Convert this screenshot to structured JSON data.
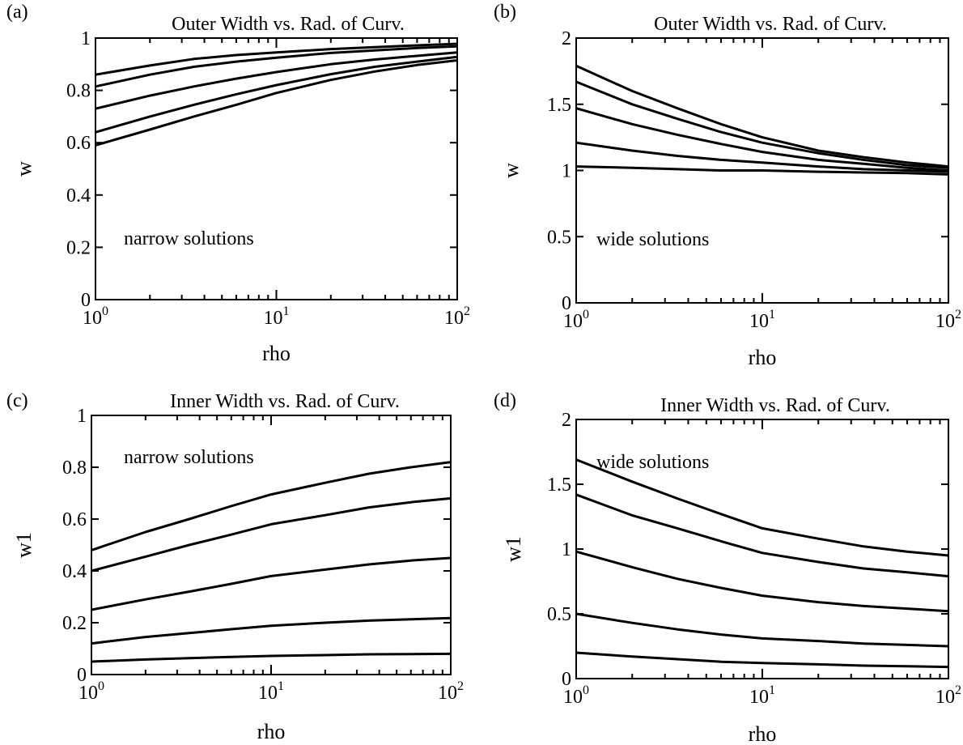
{
  "chart_data": [
    {
      "type": "line",
      "panel_label": "(a)",
      "title": "Outer Width vs. Rad. of Curv.",
      "xlabel": "rho",
      "ylabel": "w",
      "xscale": "log",
      "xlim": [
        1,
        100
      ],
      "ylim": [
        0,
        1
      ],
      "xtick_labels": [
        {
          "base": "10",
          "exp": "0"
        },
        {
          "base": "10",
          "exp": "1"
        },
        {
          "base": "10",
          "exp": "2"
        }
      ],
      "ytick_labels": [
        "0",
        "0.2",
        "0.4",
        "0.6",
        "0.8",
        "1"
      ],
      "annotation": "narrow solutions",
      "x": [
        1,
        2,
        3.5,
        6,
        10,
        20,
        35,
        60,
        100
      ],
      "series": [
        {
          "values": [
            0.86,
            0.895,
            0.92,
            0.935,
            0.945,
            0.958,
            0.965,
            0.972,
            0.978
          ]
        },
        {
          "values": [
            0.815,
            0.86,
            0.89,
            0.91,
            0.925,
            0.943,
            0.953,
            0.962,
            0.968
          ]
        },
        {
          "values": [
            0.73,
            0.78,
            0.815,
            0.845,
            0.87,
            0.9,
            0.918,
            0.932,
            0.945
          ]
        },
        {
          "values": [
            0.64,
            0.7,
            0.745,
            0.785,
            0.82,
            0.862,
            0.89,
            0.91,
            0.928
          ]
        },
        {
          "values": [
            0.59,
            0.65,
            0.7,
            0.745,
            0.79,
            0.84,
            0.872,
            0.897,
            0.915
          ]
        }
      ]
    },
    {
      "type": "line",
      "panel_label": "(b)",
      "title": "Outer Width vs. Rad. of Curv.",
      "xlabel": "rho",
      "ylabel": "w",
      "xscale": "log",
      "xlim": [
        1,
        100
      ],
      "ylim": [
        0,
        2
      ],
      "xtick_labels": [
        {
          "base": "10",
          "exp": "0"
        },
        {
          "base": "10",
          "exp": "1"
        },
        {
          "base": "10",
          "exp": "2"
        }
      ],
      "ytick_labels": [
        "0",
        "0.5",
        "1",
        "1.5",
        "2"
      ],
      "annotation": "wide solutions",
      "x": [
        1,
        2,
        3.5,
        6,
        10,
        20,
        35,
        60,
        100
      ],
      "series": [
        {
          "values": [
            1.79,
            1.6,
            1.47,
            1.35,
            1.25,
            1.15,
            1.1,
            1.06,
            1.03
          ]
        },
        {
          "values": [
            1.67,
            1.5,
            1.39,
            1.29,
            1.21,
            1.13,
            1.08,
            1.04,
            1.02
          ]
        },
        {
          "values": [
            1.47,
            1.35,
            1.27,
            1.2,
            1.14,
            1.08,
            1.05,
            1.02,
            1.0
          ]
        },
        {
          "values": [
            1.21,
            1.15,
            1.11,
            1.08,
            1.06,
            1.03,
            1.01,
            1.0,
            0.99
          ]
        },
        {
          "values": [
            1.03,
            1.02,
            1.01,
            1.0,
            1.0,
            0.99,
            0.985,
            0.98,
            0.97
          ]
        }
      ]
    },
    {
      "type": "line",
      "panel_label": "(c)",
      "title": "Inner Width vs. Rad. of Curv.",
      "xlabel": "rho",
      "ylabel": "w1",
      "xscale": "log",
      "xlim": [
        1,
        100
      ],
      "ylim": [
        0,
        1
      ],
      "xtick_labels": [
        {
          "base": "10",
          "exp": "0"
        },
        {
          "base": "10",
          "exp": "1"
        },
        {
          "base": "10",
          "exp": "2"
        }
      ],
      "ytick_labels": [
        "0",
        "0.2",
        "0.4",
        "0.6",
        "0.8",
        "1"
      ],
      "annotation": "narrow solutions",
      "x": [
        1,
        2,
        3.5,
        6,
        10,
        20,
        35,
        60,
        100
      ],
      "series": [
        {
          "values": [
            0.48,
            0.55,
            0.6,
            0.65,
            0.695,
            0.74,
            0.775,
            0.8,
            0.82
          ]
        },
        {
          "values": [
            0.4,
            0.455,
            0.5,
            0.54,
            0.58,
            0.615,
            0.645,
            0.665,
            0.68
          ]
        },
        {
          "values": [
            0.25,
            0.29,
            0.32,
            0.35,
            0.38,
            0.405,
            0.425,
            0.44,
            0.45
          ]
        },
        {
          "values": [
            0.12,
            0.145,
            0.16,
            0.175,
            0.188,
            0.2,
            0.208,
            0.213,
            0.218
          ]
        },
        {
          "values": [
            0.05,
            0.058,
            0.063,
            0.068,
            0.072,
            0.075,
            0.078,
            0.079,
            0.08
          ]
        }
      ]
    },
    {
      "type": "line",
      "panel_label": "(d)",
      "title": "Inner Width vs. Rad. of Curv.",
      "xlabel": "rho",
      "ylabel": "w1",
      "xscale": "log",
      "xlim": [
        1,
        100
      ],
      "ylim": [
        0,
        2
      ],
      "xtick_labels": [
        {
          "base": "10",
          "exp": "0"
        },
        {
          "base": "10",
          "exp": "1"
        },
        {
          "base": "10",
          "exp": "2"
        }
      ],
      "ytick_labels": [
        "0",
        "0.5",
        "1",
        "1.5",
        "2"
      ],
      "annotation": "wide solutions",
      "x": [
        1,
        2,
        3.5,
        6,
        10,
        20,
        35,
        60,
        100
      ],
      "series": [
        {
          "values": [
            1.69,
            1.52,
            1.39,
            1.27,
            1.16,
            1.08,
            1.02,
            0.98,
            0.95
          ]
        },
        {
          "values": [
            1.42,
            1.26,
            1.16,
            1.06,
            0.97,
            0.9,
            0.85,
            0.82,
            0.79
          ]
        },
        {
          "values": [
            0.98,
            0.86,
            0.77,
            0.7,
            0.64,
            0.59,
            0.56,
            0.54,
            0.52
          ]
        },
        {
          "values": [
            0.5,
            0.43,
            0.38,
            0.34,
            0.31,
            0.29,
            0.27,
            0.26,
            0.25
          ]
        },
        {
          "values": [
            0.2,
            0.17,
            0.15,
            0.13,
            0.12,
            0.11,
            0.1,
            0.095,
            0.09
          ]
        }
      ]
    }
  ]
}
